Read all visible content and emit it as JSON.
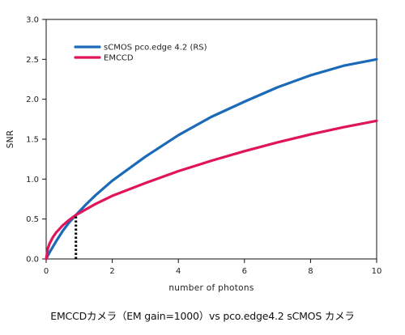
{
  "caption": "EMCCDカメラ（EM gain=1000）vs pco.edge4.2 sCMOS カメラ",
  "chart_data": {
    "type": "line",
    "xlabel": "number of photons",
    "ylabel": "SNR",
    "xlim": [
      0,
      10
    ],
    "ylim": [
      0,
      3.0
    ],
    "xticks": [
      "0",
      "2",
      "4",
      "6",
      "8",
      "10"
    ],
    "yticks": [
      "0.0",
      "0.5",
      "1.0",
      "1.5",
      "2.0",
      "2.5",
      "3.0"
    ],
    "grid": false,
    "legend_position": "top-left",
    "series": [
      {
        "name": "sCMOS pco.edge 4.2 (RS)",
        "color": "#1b6ab8",
        "x": [
          0,
          0.05,
          0.1,
          0.2,
          0.3,
          0.5,
          0.7,
          0.9,
          1.2,
          1.5,
          2,
          3,
          4,
          5,
          6,
          7,
          8,
          9,
          10
        ],
        "y": [
          0,
          0.04,
          0.08,
          0.15,
          0.22,
          0.35,
          0.46,
          0.55,
          0.68,
          0.8,
          0.98,
          1.28,
          1.55,
          1.78,
          1.97,
          2.15,
          2.3,
          2.42,
          2.5
        ]
      },
      {
        "name": "EMCCD",
        "color": "#e0145a",
        "x": [
          0,
          0.05,
          0.1,
          0.2,
          0.3,
          0.5,
          0.7,
          0.9,
          1.2,
          1.5,
          2,
          3,
          4,
          5,
          6,
          7,
          8,
          9,
          10
        ],
        "y": [
          0,
          0.13,
          0.19,
          0.27,
          0.33,
          0.42,
          0.49,
          0.55,
          0.62,
          0.69,
          0.79,
          0.95,
          1.1,
          1.23,
          1.35,
          1.46,
          1.56,
          1.65,
          1.73
        ]
      }
    ],
    "annotation": {
      "type": "vertical-dotted-line",
      "x": 0.9,
      "y_top": 0.55
    }
  }
}
